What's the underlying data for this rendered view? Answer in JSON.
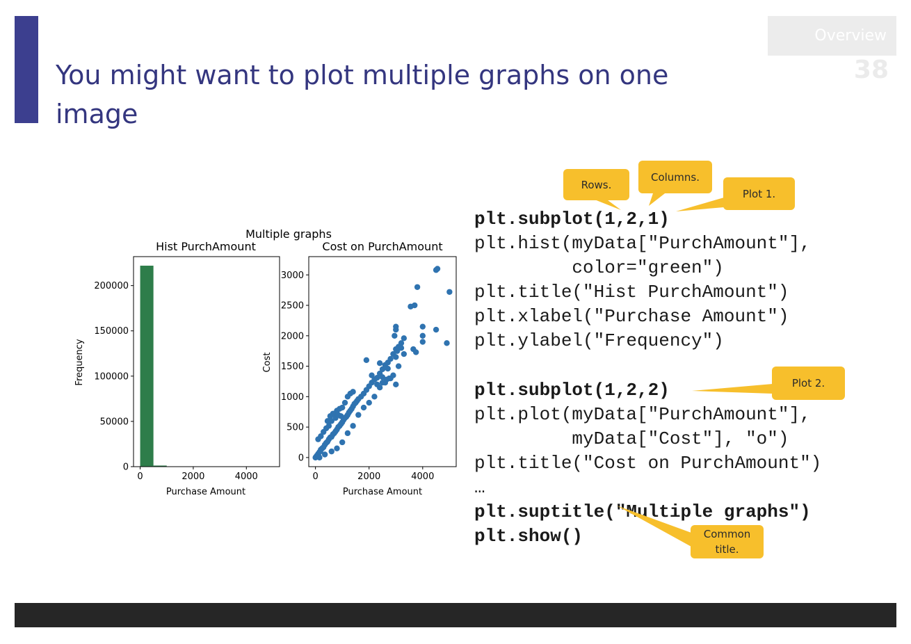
{
  "slide": {
    "title": "You might want to plot multiple graphs on one image",
    "section": "Overview",
    "page_number": "38"
  },
  "colors": {
    "accent": "#3c3f8f",
    "title_text": "#34367f",
    "callout": "#f7bf2c",
    "footer": "#262626",
    "hist_bar": "#2e7d4a",
    "scatter_point": "#2f73b0"
  },
  "code": {
    "lines": [
      {
        "text": "plt.subplot(1,2,1)",
        "bold": true
      },
      {
        "text": "plt.hist(myData[\"PurchAmount\"],",
        "bold": false
      },
      {
        "text": "         color=\"green\")",
        "bold": false
      },
      {
        "text": "plt.title(\"Hist PurchAmount\")",
        "bold": false
      },
      {
        "text": "plt.xlabel(\"Purchase Amount\")",
        "bold": false
      },
      {
        "text": "plt.ylabel(\"Frequency\")",
        "bold": false
      },
      {
        "text": "plt.subplot(1,2,2)",
        "bold": true
      },
      {
        "text": "plt.plot(myData[\"PurchAmount\"],",
        "bold": false
      },
      {
        "text": "         myData[\"Cost\"], \"o\")",
        "bold": false
      },
      {
        "text": "plt.title(\"Cost on PurchAmount\")",
        "bold": false
      },
      {
        "text": "…",
        "bold": false
      },
      {
        "text": "plt.suptitle(\"Multiple graphs\")",
        "bold": true
      },
      {
        "text": "plt.show()",
        "bold": true
      }
    ]
  },
  "callouts": {
    "rows": "Rows.",
    "columns": "Columns.",
    "plot1": "Plot 1.",
    "plot2": "Plot 2.",
    "common_title": "Common title."
  },
  "chart_data": {
    "suptitle": "Multiple graphs",
    "charts": [
      {
        "type": "bar",
        "title": "Hist PurchAmount",
        "xlabel": "Purchase Amount",
        "ylabel": "Frequency",
        "xlim": [
          -250,
          5250
        ],
        "ylim": [
          0,
          232000
        ],
        "xticks": [
          0,
          2000,
          4000
        ],
        "xtick_labels": [
          "0",
          "2000",
          "4000"
        ],
        "yticks": [
          0,
          50000,
          100000,
          150000,
          200000
        ],
        "ytick_labels": [
          "0",
          "50000",
          "100000",
          "150000",
          "200000"
        ],
        "bin_edges": [
          0,
          500,
          1000,
          1500,
          2000,
          2500,
          3000,
          3500,
          4000,
          4500,
          5000
        ],
        "values": [
          222000,
          1200,
          150,
          60,
          30,
          15,
          8,
          4,
          2,
          1
        ],
        "color": "#2e7d4a"
      },
      {
        "type": "scatter",
        "title": "Cost on PurchAmount",
        "xlabel": "Purchase Amount",
        "ylabel": "Cost",
        "xlim": [
          -250,
          5250
        ],
        "ylim": [
          -150,
          3300
        ],
        "xticks": [
          0,
          2000,
          4000
        ],
        "xtick_labels": [
          "0",
          "2000",
          "4000"
        ],
        "yticks": [
          0,
          500,
          1000,
          1500,
          2000,
          2500,
          3000
        ],
        "ytick_labels": [
          "0",
          "500",
          "1000",
          "1500",
          "2000",
          "2500",
          "3000"
        ],
        "color": "#2f73b0",
        "points": [
          [
            0,
            0
          ],
          [
            20,
            10
          ],
          [
            50,
            30
          ],
          [
            80,
            40
          ],
          [
            100,
            60
          ],
          [
            120,
            20
          ],
          [
            150,
            90
          ],
          [
            180,
            100
          ],
          [
            200,
            130
          ],
          [
            250,
            150
          ],
          [
            300,
            170
          ],
          [
            350,
            210
          ],
          [
            400,
            240
          ],
          [
            450,
            260
          ],
          [
            500,
            300
          ],
          [
            550,
            330
          ],
          [
            600,
            340
          ],
          [
            650,
            380
          ],
          [
            700,
            400
          ],
          [
            750,
            430
          ],
          [
            800,
            460
          ],
          [
            850,
            500
          ],
          [
            900,
            520
          ],
          [
            950,
            550
          ],
          [
            1000,
            580
          ],
          [
            1050,
            620
          ],
          [
            1100,
            650
          ],
          [
            1150,
            670
          ],
          [
            1200,
            700
          ],
          [
            1250,
            740
          ],
          [
            1300,
            770
          ],
          [
            1350,
            800
          ],
          [
            1400,
            840
          ],
          [
            1450,
            880
          ],
          [
            1500,
            900
          ],
          [
            1550,
            930
          ],
          [
            1600,
            960
          ],
          [
            1700,
            1000
          ],
          [
            1800,
            1050
          ],
          [
            1900,
            1110
          ],
          [
            2000,
            1170
          ],
          [
            2100,
            1230
          ],
          [
            2200,
            1280
          ],
          [
            2300,
            1310
          ],
          [
            2400,
            1380
          ],
          [
            2500,
            1450
          ],
          [
            2600,
            1520
          ],
          [
            2700,
            1560
          ],
          [
            2800,
            1620
          ],
          [
            2900,
            1700
          ],
          [
            3000,
            1780
          ],
          [
            3100,
            1820
          ],
          [
            3200,
            1880
          ],
          [
            3300,
            1960
          ],
          [
            100,
            300
          ],
          [
            200,
            350
          ],
          [
            300,
            420
          ],
          [
            400,
            480
          ],
          [
            500,
            520
          ],
          [
            600,
            600
          ],
          [
            700,
            720
          ],
          [
            800,
            770
          ],
          [
            900,
            800
          ],
          [
            1000,
            820
          ],
          [
            1100,
            900
          ],
          [
            1200,
            1000
          ],
          [
            1300,
            1050
          ],
          [
            1400,
            1080
          ],
          [
            150,
            0
          ],
          [
            350,
            50
          ],
          [
            600,
            100
          ],
          [
            800,
            150
          ],
          [
            1000,
            250
          ],
          [
            1200,
            400
          ],
          [
            1400,
            520
          ],
          [
            1600,
            700
          ],
          [
            1800,
            820
          ],
          [
            2000,
            900
          ],
          [
            2200,
            1000
          ],
          [
            2400,
            1150
          ],
          [
            2600,
            1230
          ],
          [
            2800,
            1300
          ],
          [
            3000,
            1200
          ],
          [
            3100,
            1500
          ],
          [
            1900,
            1600
          ],
          [
            2100,
            1350
          ],
          [
            2300,
            1200
          ],
          [
            2500,
            1320
          ],
          [
            2700,
            1460
          ],
          [
            2900,
            1350
          ],
          [
            3000,
            2100
          ],
          [
            3000,
            2150
          ],
          [
            2950,
            2000
          ],
          [
            3000,
            1650
          ],
          [
            3050,
            1750
          ],
          [
            3200,
            1800
          ],
          [
            3300,
            1700
          ],
          [
            3550,
            2480
          ],
          [
            3700,
            2500
          ],
          [
            3650,
            1780
          ],
          [
            3750,
            1730
          ],
          [
            3800,
            2800
          ],
          [
            4000,
            1900
          ],
          [
            4000,
            2000
          ],
          [
            4000,
            2150
          ],
          [
            4500,
            3080
          ],
          [
            4550,
            3100
          ],
          [
            4500,
            2100
          ],
          [
            4900,
            1880
          ],
          [
            5000,
            2720
          ],
          [
            2500,
            1230
          ],
          [
            2650,
            1280
          ],
          [
            2750,
            1300
          ],
          [
            2400,
            1550
          ],
          [
            450,
            600
          ],
          [
            550,
            680
          ],
          [
            650,
            720
          ],
          [
            750,
            650
          ],
          [
            850,
            700
          ],
          [
            950,
            680
          ]
        ]
      }
    ]
  }
}
